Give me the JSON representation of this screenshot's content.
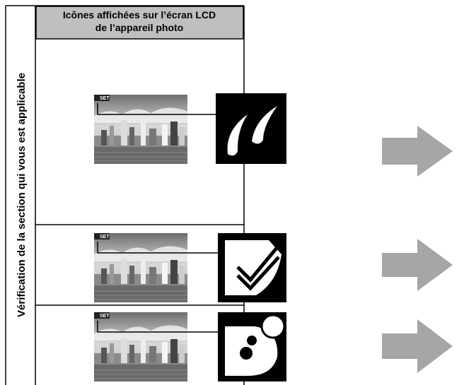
{
  "header": {
    "lines": [
      "Icônes affichées sur l’écran LCD",
      "de l’appareil photo"
    ]
  },
  "side_label": "Vérification de la section qui vous est applicable",
  "rows": [
    {
      "badge": "SET"
    },
    {
      "badge": "SET"
    },
    {
      "badge": "SET"
    }
  ]
}
